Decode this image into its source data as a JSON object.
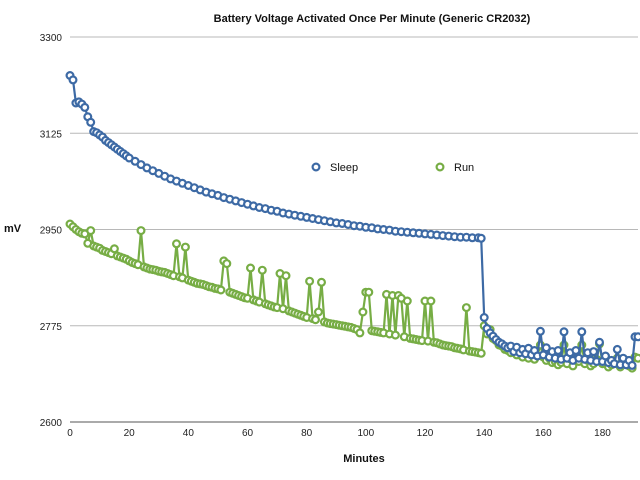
{
  "chart_data": {
    "type": "line",
    "title": "Battery Voltage Activated Once Per Minute (Generic CR2032)",
    "xlabel": "Minutes",
    "ylabel": "mV",
    "xlim": [
      0,
      192
    ],
    "ylim": [
      2600,
      3300
    ],
    "x_ticks": [
      0,
      20,
      40,
      60,
      80,
      100,
      120,
      140,
      160,
      180
    ],
    "y_ticks": [
      2600,
      2775,
      2950,
      3125,
      3300
    ],
    "grid": "horizontal",
    "legend": "center",
    "series": [
      {
        "name": "Sleep",
        "color": "#3d6aa5",
        "marker": "open-circle",
        "points": [
          [
            0,
            3230
          ],
          [
            1,
            3222
          ],
          [
            2,
            3180
          ],
          [
            3,
            3182
          ],
          [
            4,
            3178
          ],
          [
            5,
            3172
          ],
          [
            6,
            3155
          ],
          [
            7,
            3145
          ],
          [
            8,
            3128
          ],
          [
            9,
            3126
          ],
          [
            10,
            3122
          ],
          [
            11,
            3118
          ],
          [
            12,
            3112
          ],
          [
            13,
            3108
          ],
          [
            14,
            3104
          ],
          [
            15,
            3100
          ],
          [
            16,
            3096
          ],
          [
            17,
            3092
          ],
          [
            18,
            3088
          ],
          [
            19,
            3084
          ],
          [
            20,
            3080
          ],
          [
            22,
            3074
          ],
          [
            24,
            3068
          ],
          [
            26,
            3062
          ],
          [
            28,
            3057
          ],
          [
            30,
            3052
          ],
          [
            32,
            3047
          ],
          [
            34,
            3042
          ],
          [
            36,
            3038
          ],
          [
            38,
            3034
          ],
          [
            40,
            3030
          ],
          [
            42,
            3026
          ],
          [
            44,
            3022
          ],
          [
            46,
            3018
          ],
          [
            48,
            3015
          ],
          [
            50,
            3012
          ],
          [
            52,
            3008
          ],
          [
            54,
            3005
          ],
          [
            56,
            3002
          ],
          [
            58,
            2999
          ],
          [
            60,
            2996
          ],
          [
            62,
            2993
          ],
          [
            64,
            2990
          ],
          [
            66,
            2988
          ],
          [
            68,
            2985
          ],
          [
            70,
            2983
          ],
          [
            72,
            2980
          ],
          [
            74,
            2978
          ],
          [
            76,
            2976
          ],
          [
            78,
            2974
          ],
          [
            80,
            2972
          ],
          [
            82,
            2970
          ],
          [
            84,
            2968
          ],
          [
            86,
            2966
          ],
          [
            88,
            2964
          ],
          [
            90,
            2962
          ],
          [
            92,
            2961
          ],
          [
            94,
            2959
          ],
          [
            96,
            2957
          ],
          [
            98,
            2956
          ],
          [
            100,
            2954
          ],
          [
            102,
            2953
          ],
          [
            104,
            2951
          ],
          [
            106,
            2950
          ],
          [
            108,
            2949
          ],
          [
            110,
            2947
          ],
          [
            112,
            2946
          ],
          [
            114,
            2945
          ],
          [
            116,
            2944
          ],
          [
            118,
            2943
          ],
          [
            120,
            2942
          ],
          [
            122,
            2941
          ],
          [
            124,
            2940
          ],
          [
            126,
            2939
          ],
          [
            128,
            2938
          ],
          [
            130,
            2937
          ],
          [
            132,
            2936
          ],
          [
            134,
            2936
          ],
          [
            136,
            2935
          ],
          [
            138,
            2935
          ],
          [
            139,
            2934
          ],
          [
            140,
            2790
          ],
          [
            141,
            2770
          ],
          [
            142,
            2762
          ],
          [
            143,
            2756
          ],
          [
            144,
            2750
          ],
          [
            145,
            2745
          ],
          [
            146,
            2742
          ],
          [
            147,
            2738
          ],
          [
            148,
            2735
          ],
          [
            149,
            2738
          ],
          [
            150,
            2728
          ],
          [
            151,
            2736
          ],
          [
            152,
            2726
          ],
          [
            153,
            2732
          ],
          [
            154,
            2724
          ],
          [
            155,
            2734
          ],
          [
            156,
            2722
          ],
          [
            157,
            2730
          ],
          [
            158,
            2720
          ],
          [
            159,
            2765
          ],
          [
            160,
            2722
          ],
          [
            161,
            2735
          ],
          [
            162,
            2718
          ],
          [
            163,
            2728
          ],
          [
            164,
            2716
          ],
          [
            165,
            2730
          ],
          [
            166,
            2714
          ],
          [
            167,
            2764
          ],
          [
            168,
            2716
          ],
          [
            169,
            2726
          ],
          [
            170,
            2712
          ],
          [
            171,
            2730
          ],
          [
            172,
            2716
          ],
          [
            173,
            2764
          ],
          [
            174,
            2714
          ],
          [
            175,
            2726
          ],
          [
            176,
            2712
          ],
          [
            177,
            2728
          ],
          [
            178,
            2710
          ],
          [
            179,
            2745
          ],
          [
            180,
            2710
          ],
          [
            181,
            2720
          ],
          [
            182,
            2708
          ],
          [
            183,
            2712
          ],
          [
            184,
            2706
          ],
          [
            185,
            2732
          ],
          [
            186,
            2704
          ],
          [
            187,
            2716
          ],
          [
            188,
            2704
          ],
          [
            189,
            2712
          ],
          [
            190,
            2703
          ],
          [
            191,
            2755
          ],
          [
            192,
            2755
          ]
        ]
      },
      {
        "name": "Run",
        "color": "#77ad45",
        "marker": "open-circle",
        "points": [
          [
            0,
            2960
          ],
          [
            1,
            2955
          ],
          [
            2,
            2950
          ],
          [
            3,
            2946
          ],
          [
            4,
            2943
          ],
          [
            5,
            2942
          ],
          [
            6,
            2925
          ],
          [
            7,
            2948
          ],
          [
            8,
            2920
          ],
          [
            9,
            2918
          ],
          [
            10,
            2916
          ],
          [
            11,
            2912
          ],
          [
            12,
            2910
          ],
          [
            13,
            2908
          ],
          [
            14,
            2906
          ],
          [
            15,
            2915
          ],
          [
            16,
            2902
          ],
          [
            17,
            2900
          ],
          [
            18,
            2898
          ],
          [
            19,
            2896
          ],
          [
            20,
            2893
          ],
          [
            21,
            2890
          ],
          [
            22,
            2888
          ],
          [
            23,
            2886
          ],
          [
            24,
            2948
          ],
          [
            25,
            2882
          ],
          [
            26,
            2880
          ],
          [
            27,
            2878
          ],
          [
            28,
            2877
          ],
          [
            29,
            2876
          ],
          [
            30,
            2874
          ],
          [
            31,
            2873
          ],
          [
            32,
            2872
          ],
          [
            33,
            2870
          ],
          [
            34,
            2868
          ],
          [
            35,
            2866
          ],
          [
            36,
            2924
          ],
          [
            37,
            2864
          ],
          [
            38,
            2862
          ],
          [
            39,
            2918
          ],
          [
            40,
            2858
          ],
          [
            41,
            2856
          ],
          [
            42,
            2854
          ],
          [
            43,
            2852
          ],
          [
            44,
            2851
          ],
          [
            45,
            2850
          ],
          [
            46,
            2848
          ],
          [
            47,
            2846
          ],
          [
            48,
            2845
          ],
          [
            49,
            2843
          ],
          [
            50,
            2842
          ],
          [
            51,
            2840
          ],
          [
            52,
            2893
          ],
          [
            53,
            2888
          ],
          [
            54,
            2836
          ],
          [
            55,
            2834
          ],
          [
            56,
            2832
          ],
          [
            57,
            2830
          ],
          [
            58,
            2828
          ],
          [
            59,
            2826
          ],
          [
            60,
            2825
          ],
          [
            61,
            2880
          ],
          [
            62,
            2822
          ],
          [
            63,
            2820
          ],
          [
            64,
            2818
          ],
          [
            65,
            2876
          ],
          [
            66,
            2815
          ],
          [
            67,
            2813
          ],
          [
            68,
            2811
          ],
          [
            69,
            2809
          ],
          [
            70,
            2808
          ],
          [
            71,
            2870
          ],
          [
            72,
            2806
          ],
          [
            73,
            2866
          ],
          [
            74,
            2802
          ],
          [
            75,
            2800
          ],
          [
            76,
            2798
          ],
          [
            77,
            2796
          ],
          [
            78,
            2794
          ],
          [
            79,
            2792
          ],
          [
            80,
            2790
          ],
          [
            81,
            2856
          ],
          [
            82,
            2788
          ],
          [
            83,
            2786
          ],
          [
            84,
            2800
          ],
          [
            85,
            2854
          ],
          [
            86,
            2782
          ],
          [
            87,
            2780
          ],
          [
            88,
            2779
          ],
          [
            89,
            2778
          ],
          [
            90,
            2777
          ],
          [
            91,
            2776
          ],
          [
            92,
            2775
          ],
          [
            93,
            2774
          ],
          [
            94,
            2773
          ],
          [
            95,
            2772
          ],
          [
            96,
            2770
          ],
          [
            97,
            2768
          ],
          [
            98,
            2762
          ],
          [
            99,
            2800
          ],
          [
            100,
            2836
          ],
          [
            101,
            2836
          ],
          [
            102,
            2766
          ],
          [
            103,
            2765
          ],
          [
            104,
            2764
          ],
          [
            105,
            2763
          ],
          [
            106,
            2762
          ],
          [
            107,
            2832
          ],
          [
            108,
            2760
          ],
          [
            109,
            2830
          ],
          [
            110,
            2758
          ],
          [
            111,
            2830
          ],
          [
            112,
            2825
          ],
          [
            113,
            2755
          ],
          [
            114,
            2820
          ],
          [
            115,
            2752
          ],
          [
            116,
            2751
          ],
          [
            117,
            2750
          ],
          [
            118,
            2749
          ],
          [
            119,
            2748
          ],
          [
            120,
            2820
          ],
          [
            121,
            2747
          ],
          [
            122,
            2820
          ],
          [
            123,
            2745
          ],
          [
            124,
            2744
          ],
          [
            125,
            2742
          ],
          [
            126,
            2740
          ],
          [
            127,
            2739
          ],
          [
            128,
            2738
          ],
          [
            129,
            2737
          ],
          [
            130,
            2735
          ],
          [
            131,
            2734
          ],
          [
            132,
            2733
          ],
          [
            133,
            2731
          ],
          [
            134,
            2808
          ],
          [
            135,
            2729
          ],
          [
            136,
            2728
          ],
          [
            137,
            2727
          ],
          [
            138,
            2726
          ],
          [
            139,
            2725
          ],
          [
            140,
            2775
          ],
          [
            141,
            2760
          ],
          [
            142,
            2768
          ],
          [
            143,
            2752
          ],
          [
            144,
            2748
          ],
          [
            145,
            2740
          ],
          [
            146,
            2738
          ],
          [
            147,
            2732
          ],
          [
            148,
            2730
          ],
          [
            149,
            2726
          ],
          [
            150,
            2728
          ],
          [
            151,
            2722
          ],
          [
            152,
            2730
          ],
          [
            153,
            2718
          ],
          [
            154,
            2726
          ],
          [
            155,
            2716
          ],
          [
            156,
            2722
          ],
          [
            157,
            2714
          ],
          [
            158,
            2720
          ],
          [
            159,
            2740
          ],
          [
            160,
            2718
          ],
          [
            161,
            2712
          ],
          [
            162,
            2716
          ],
          [
            163,
            2708
          ],
          [
            164,
            2710
          ],
          [
            165,
            2704
          ],
          [
            166,
            2708
          ],
          [
            167,
            2740
          ],
          [
            168,
            2706
          ],
          [
            169,
            2715
          ],
          [
            170,
            2702
          ],
          [
            171,
            2712
          ],
          [
            172,
            2710
          ],
          [
            173,
            2740
          ],
          [
            174,
            2706
          ],
          [
            175,
            2712
          ],
          [
            176,
            2702
          ],
          [
            177,
            2706
          ],
          [
            178,
            2714
          ],
          [
            179,
            2742
          ],
          [
            180,
            2706
          ],
          [
            181,
            2712
          ],
          [
            182,
            2700
          ],
          [
            183,
            2704
          ],
          [
            184,
            2708
          ],
          [
            185,
            2716
          ],
          [
            186,
            2700
          ],
          [
            187,
            2706
          ],
          [
            188,
            2712
          ],
          [
            189,
            2702
          ],
          [
            190,
            2698
          ],
          [
            191,
            2718
          ],
          [
            192,
            2716
          ]
        ]
      }
    ]
  }
}
